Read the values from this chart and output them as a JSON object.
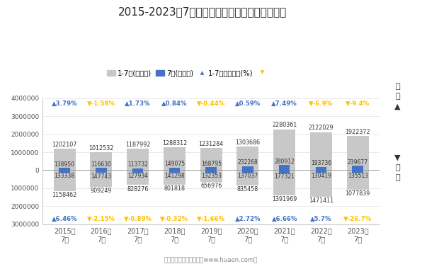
{
  "title": "2015-2023年7月郑州新郑综合保税区进、出口额",
  "years": [
    "2015年\n7月",
    "2016年\n7月",
    "2017年\n7月",
    "2018年\n7月",
    "2019年\n7月",
    "2020年\n7月",
    "2021年\n7月",
    "2022年\n7月",
    "2023年\n7月"
  ],
  "export_17": [
    1202107,
    1012532,
    1187992,
    1288312,
    1231284,
    1303686,
    2280361,
    2122029,
    1922372
  ],
  "export_7": [
    138950,
    116630,
    113732,
    149075,
    168795,
    232268,
    280912,
    193736,
    239677
  ],
  "export_growth": [
    "▲3.79%",
    "▼-1.58%",
    "▲1.73%",
    "▲0.84%",
    "▼-0.44%",
    "▲0.59%",
    "▲7.49%",
    "▼-6.9%",
    "▼-9.4%"
  ],
  "export_growth_up": [
    true,
    false,
    true,
    true,
    false,
    true,
    true,
    false,
    false
  ],
  "import_17": [
    1158462,
    909249,
    828276,
    801818,
    656976,
    835458,
    1391969,
    1471411,
    1077839
  ],
  "import_7": [
    133338,
    147743,
    127934,
    141298,
    132353,
    137037,
    177321,
    130419,
    135513
  ],
  "import_growth": [
    "▲6.46%",
    "▼-2.15%",
    "▼-0.89%",
    "▼-0.32%",
    "▼-1.66%",
    "▲2.72%",
    "▲6.66%",
    "▲5.7%",
    "▼-26.7%"
  ],
  "import_growth_up": [
    true,
    false,
    false,
    false,
    false,
    true,
    true,
    true,
    false
  ],
  "bar_17_color": "#c8c8c8",
  "bar_7_color": "#4472c4",
  "growth_up_color": "#4472c4",
  "growth_down_color": "#ffc000",
  "background_color": "#ffffff",
  "legend_labels": [
    "1-7月(万美元)",
    "7月(万美元)",
    "1-7月同比增速(%)"
  ],
  "footer": "制图：华经产业研究院（www.huaon.com）"
}
